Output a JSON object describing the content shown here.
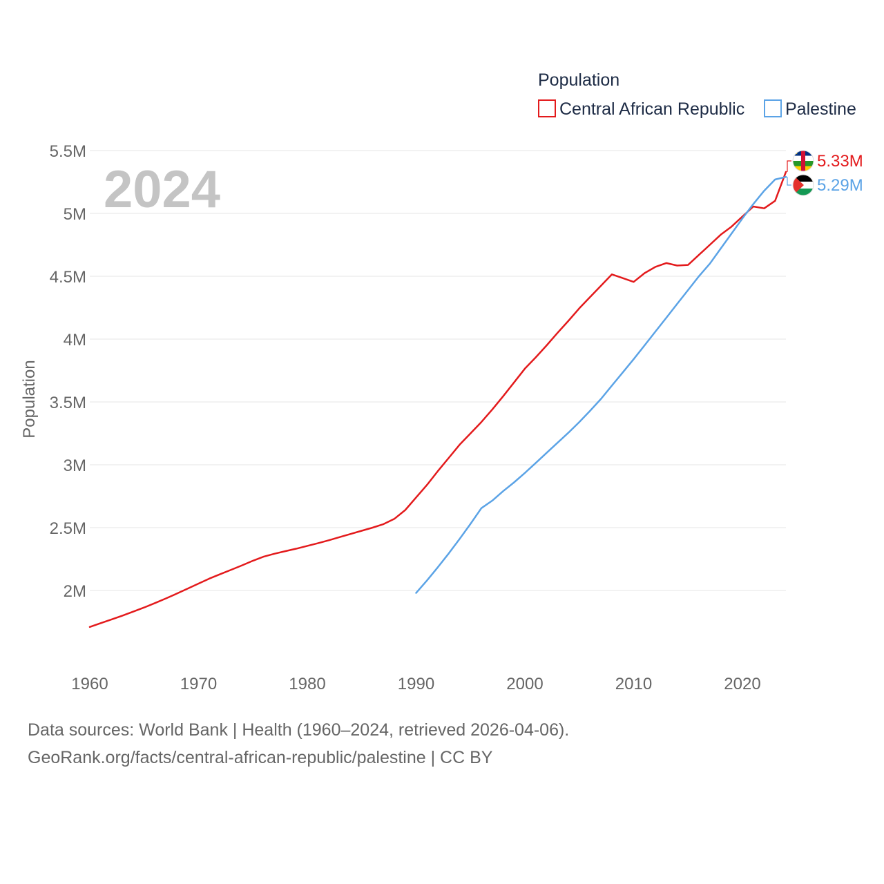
{
  "chart_data": {
    "type": "line",
    "title": "",
    "legend_title": "Population",
    "xlabel": "",
    "ylabel": "Population",
    "year_display": "2024",
    "xlim": [
      1960,
      2024
    ],
    "ylim": [
      1500000,
      5500000
    ],
    "x_ticks": [
      1960,
      1970,
      1980,
      1990,
      2000,
      2010,
      2020
    ],
    "x_tick_labels": [
      "1960",
      "1970",
      "1980",
      "1990",
      "2000",
      "2010",
      "2020"
    ],
    "y_ticks": [
      2000000,
      2500000,
      3000000,
      3500000,
      4000000,
      4500000,
      5000000,
      5500000
    ],
    "y_tick_labels": [
      "2M",
      "2.5M",
      "3M",
      "3.5M",
      "4M",
      "4.5M",
      "5M",
      "5.5M"
    ],
    "legend_position": "top-right",
    "series": [
      {
        "name": "Central African Republic",
        "color": "#e31a1c",
        "flag": "central-african-republic-flag-icon",
        "end_label": "5.33M",
        "x": [
          1960,
          1961,
          1962,
          1963,
          1964,
          1965,
          1966,
          1967,
          1968,
          1969,
          1970,
          1971,
          1972,
          1973,
          1974,
          1975,
          1976,
          1977,
          1978,
          1979,
          1980,
          1981,
          1982,
          1983,
          1984,
          1985,
          1986,
          1987,
          1988,
          1989,
          1990,
          1991,
          1992,
          1993,
          1994,
          1995,
          1996,
          1997,
          1998,
          1999,
          2000,
          2001,
          2002,
          2003,
          2004,
          2005,
          2006,
          2007,
          2008,
          2009,
          2010,
          2011,
          2012,
          2013,
          2014,
          2015,
          2016,
          2017,
          2018,
          2019,
          2020,
          2021,
          2022,
          2023,
          2024
        ],
        "values": [
          1710000,
          1740000,
          1770000,
          1800000,
          1832000,
          1865000,
          1900000,
          1937000,
          1975000,
          2015000,
          2055000,
          2095000,
          2130000,
          2165000,
          2200000,
          2237000,
          2270000,
          2293000,
          2313000,
          2333000,
          2355000,
          2377000,
          2400000,
          2425000,
          2450000,
          2475000,
          2500000,
          2528000,
          2570000,
          2640000,
          2740000,
          2840000,
          2950000,
          3055000,
          3160000,
          3250000,
          3340000,
          3440000,
          3545000,
          3655000,
          3765000,
          3855000,
          3950000,
          4050000,
          4145000,
          4245000,
          4335000,
          4425000,
          4515000,
          4485000,
          4455000,
          4525000,
          4575000,
          4605000,
          4585000,
          4590000,
          4670000,
          4750000,
          4830000,
          4895000,
          4975000,
          5055000,
          5040000,
          5100000,
          5330000
        ]
      },
      {
        "name": "Palestine",
        "color": "#5ba3e6",
        "flag": "palestine-flag-icon",
        "end_label": "5.29M",
        "x": [
          1990,
          1991,
          1992,
          1993,
          1994,
          1995,
          1996,
          1997,
          1998,
          1999,
          2000,
          2001,
          2002,
          2003,
          2004,
          2005,
          2006,
          2007,
          2008,
          2009,
          2010,
          2011,
          2012,
          2013,
          2014,
          2015,
          2016,
          2017,
          2018,
          2019,
          2020,
          2021,
          2022,
          2023,
          2024
        ],
        "values": [
          1980000,
          2080000,
          2185000,
          2295000,
          2410000,
          2530000,
          2655000,
          2715000,
          2790000,
          2860000,
          2935000,
          3015000,
          3095000,
          3175000,
          3255000,
          3340000,
          3430000,
          3525000,
          3630000,
          3735000,
          3840000,
          3950000,
          4060000,
          4170000,
          4280000,
          4390000,
          4500000,
          4600000,
          4720000,
          4840000,
          4960000,
          5075000,
          5180000,
          5270000,
          5290000
        ]
      }
    ]
  },
  "footer": {
    "line1": "Data sources: World Bank | Health (1960–2024, retrieved 2026-04-06).",
    "line2": "GeoRank.org/facts/central-african-republic/palestine | CC BY"
  }
}
